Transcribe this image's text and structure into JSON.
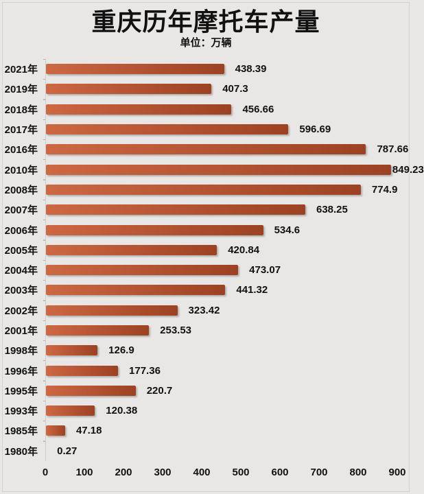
{
  "title": "重庆历年摩托车产量",
  "subtitle": "单位：万辆",
  "colors": {
    "background": "#e8e7e5",
    "frame_border": "#d3d2d0",
    "axis_line": "#cfcecb",
    "tick_mark": "#b3b2b0",
    "bar_gradient_start": "#cd6843",
    "bar_gradient_end": "#9c4223",
    "text": "#111111"
  },
  "chart_data": {
    "type": "bar",
    "orientation": "horizontal",
    "title": "重庆历年摩托车产量",
    "subtitle": "单位：万辆",
    "unit": "万辆",
    "categories": [
      "2021年",
      "2019年",
      "2018年",
      "2017年",
      "2016年",
      "2010年",
      "2008年",
      "2007年",
      "2006年",
      "2005年",
      "2004年",
      "2003年",
      "2002年",
      "2001年",
      "1998年",
      "1996年",
      "1995年",
      "1993年",
      "1985年",
      "1980年"
    ],
    "values": [
      438.39,
      407.3,
      456.66,
      596.69,
      787.66,
      849.23,
      774.9,
      638.25,
      534.6,
      420.84,
      473.07,
      441.32,
      323.42,
      253.53,
      126.9,
      177.36,
      220.7,
      120.38,
      47.18,
      0.27
    ],
    "value_labels": [
      "438.39",
      "407.3",
      "456.66",
      "596.69",
      "787.66",
      "849.23",
      "774.9",
      "638.25",
      "534.6",
      "420.84",
      "473.07",
      "441.32",
      "323.42",
      "253.53",
      "126.9",
      "177.36",
      "220.7",
      "120.38",
      "47.18",
      "0.27"
    ],
    "xlim": [
      0,
      900
    ],
    "x_ticks": [
      0,
      100,
      200,
      300,
      400,
      500,
      600,
      700,
      800,
      900
    ],
    "grid": false,
    "legend": false,
    "data_labels": true
  }
}
